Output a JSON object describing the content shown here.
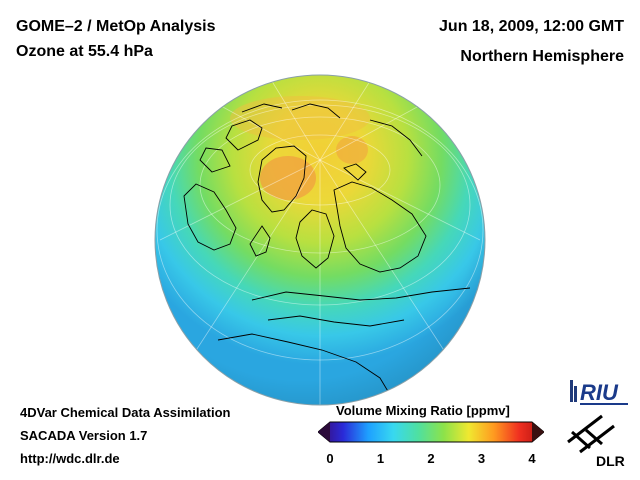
{
  "header": {
    "title_line1": "GOME–2 / MetOp Analysis",
    "title_line2": "Ozone at 55.4 hPa",
    "datetime": "Jun 18, 2009, 12:00 GMT",
    "region": "Northern Hemisphere"
  },
  "footer": {
    "line1": "4DVar Chemical Data Assimilation",
    "line2": "SACADA Version 1.7",
    "url": "http://wdc.dlr.de"
  },
  "colorbar": {
    "title": "Volume Mixing Ratio [ppmv]",
    "min": 0,
    "max": 4,
    "ticks": [
      "0",
      "1",
      "2",
      "3",
      "4"
    ],
    "stops": [
      "#3a0a6e",
      "#2a2ad8",
      "#1ea0ff",
      "#38d8f0",
      "#4fe0a0",
      "#8ce24a",
      "#f0e830",
      "#ff9a20",
      "#f03020",
      "#b01010"
    ]
  },
  "logos": {
    "riu": "RIU",
    "dlr": "DLR"
  },
  "map": {
    "projection": "orthographic",
    "hemisphere": "Northern Hemisphere"
  }
}
